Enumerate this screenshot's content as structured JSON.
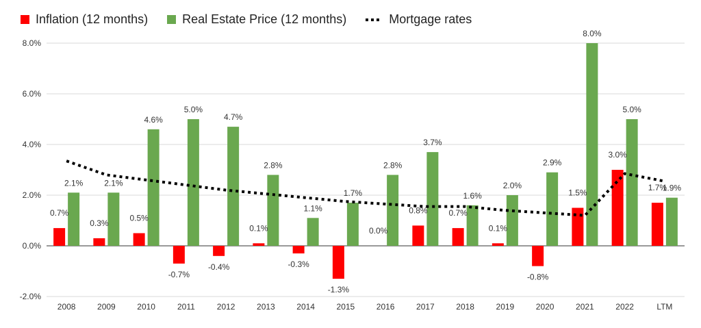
{
  "colors": {
    "inflation": "#ff0000",
    "real_estate": "#6aa84f",
    "mortgage": "#000000",
    "grid": "#d9d9d9"
  },
  "legend": [
    {
      "label": "Inflation (12 months)",
      "icon": "red-square"
    },
    {
      "label": "Real Estate Price (12 months)",
      "icon": "green-square"
    },
    {
      "label": "Mortgage rates",
      "icon": "dotted-line"
    }
  ],
  "chart_data": {
    "type": "bar",
    "categories": [
      "2008",
      "2009",
      "2010",
      "2011",
      "2012",
      "2013",
      "2014",
      "2015",
      "2016",
      "2017",
      "2018",
      "2019",
      "2020",
      "2021",
      "2022",
      "LTM"
    ],
    "series": [
      {
        "name": "Inflation (12 months)",
        "kind": "bar",
        "values": [
          0.7,
          0.3,
          0.5,
          -0.7,
          -0.4,
          0.1,
          -0.3,
          -1.3,
          0.0,
          0.8,
          0.7,
          0.1,
          -0.8,
          1.5,
          3.0,
          1.7
        ],
        "labels": [
          "0.7%",
          "0.3%",
          "0.5%",
          "-0.7%",
          "-0.4%",
          "0.1%",
          "-0.3%",
          "-1.3%",
          "0.0%",
          "0.8%",
          "0.7%",
          "0.1%",
          "-0.8%",
          "1.5%",
          "3.0%",
          "1.7%"
        ]
      },
      {
        "name": "Real Estate Price (12 months)",
        "kind": "bar",
        "values": [
          2.1,
          2.1,
          4.6,
          5.0,
          4.7,
          2.8,
          1.1,
          1.7,
          2.8,
          3.7,
          1.6,
          2.0,
          2.9,
          8.0,
          5.0,
          1.9
        ],
        "labels": [
          "2.1%",
          "2.1%",
          "4.6%",
          "5.0%",
          "4.7%",
          "2.8%",
          "1.1%",
          "1.7%",
          "2.8%",
          "3.7%",
          "1.6%",
          "2.0%",
          "2.9%",
          "8.0%",
          "5.0%",
          "1.9%"
        ]
      },
      {
        "name": "Mortgage rates",
        "kind": "dotted-line",
        "values": [
          3.35,
          2.8,
          2.6,
          2.4,
          2.2,
          2.05,
          1.9,
          1.75,
          1.65,
          1.55,
          1.55,
          1.4,
          1.3,
          1.2,
          2.85,
          2.55
        ]
      }
    ],
    "yticks": [
      "8.0%",
      "6.0%",
      "4.0%",
      "2.0%",
      "0.0%",
      "-2.0%"
    ],
    "ylim": [
      -2,
      8
    ],
    "grid": true,
    "legend_position": "top"
  }
}
